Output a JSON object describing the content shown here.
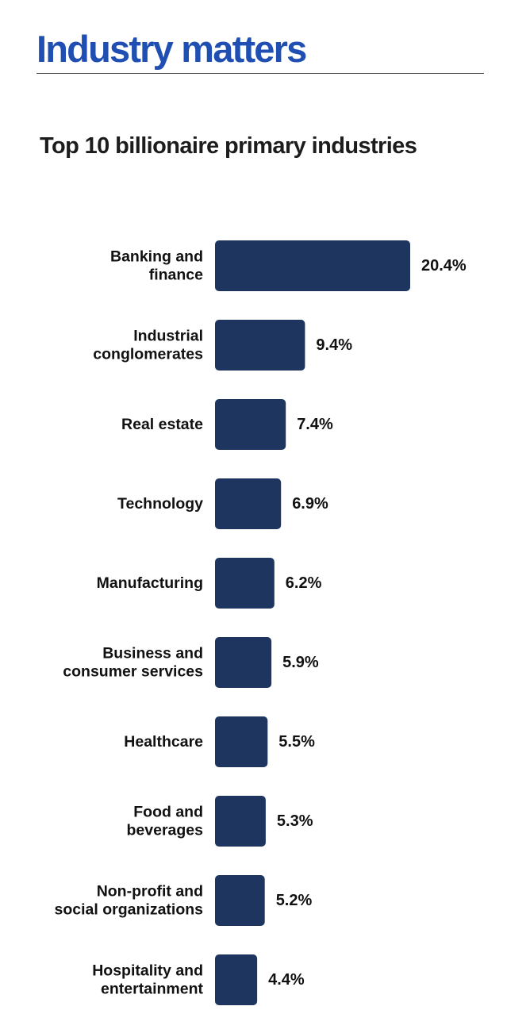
{
  "header": {
    "title": "Industry matters"
  },
  "colors": {
    "title": "#1f4fb3",
    "bar": "#1e3560",
    "text": "#111111",
    "rule": "#444444"
  },
  "chart_data": {
    "type": "bar",
    "orientation": "horizontal",
    "title": "Top 10 billionaire primary industries",
    "categories": [
      [
        "Banking and",
        "finance"
      ],
      [
        "Industrial",
        "conglomerates"
      ],
      [
        "Real estate"
      ],
      [
        "Technology"
      ],
      [
        "Manufacturing"
      ],
      [
        "Business and",
        "consumer services"
      ],
      [
        "Healthcare"
      ],
      [
        "Food and",
        "beverages"
      ],
      [
        "Non-profit and",
        "social organizations"
      ],
      [
        "Hospitality and",
        "entertainment"
      ]
    ],
    "values": [
      20.4,
      9.4,
      7.4,
      6.9,
      6.2,
      5.9,
      5.5,
      5.3,
      5.2,
      4.4
    ],
    "value_labels": [
      "20.4%",
      "9.4%",
      "7.4%",
      "6.9%",
      "6.2%",
      "5.9%",
      "5.5%",
      "5.3%",
      "5.2%",
      "4.4%"
    ],
    "unit": "%",
    "xlim": [
      0,
      20.4
    ],
    "grid": false,
    "legend": "none"
  }
}
